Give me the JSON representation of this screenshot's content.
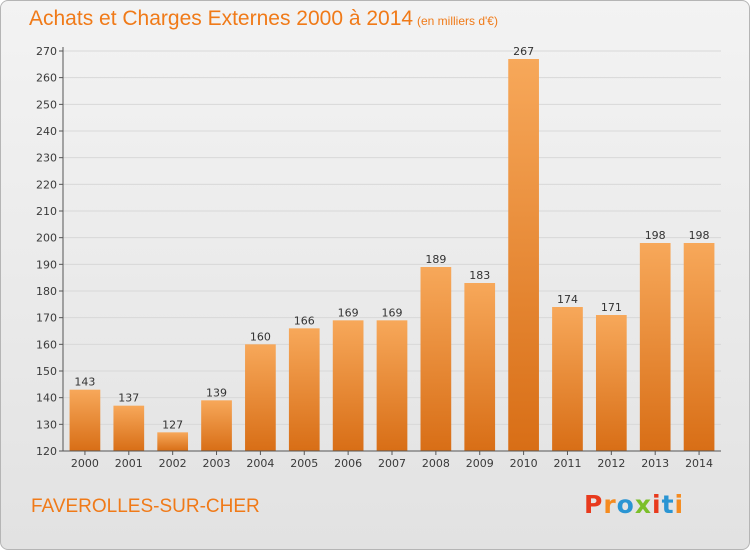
{
  "page": {
    "place_name": "FAVEROLLES-SUR-CHER",
    "logo_text": "Proxiti",
    "logo_colors": [
      "#e83a1d",
      "#f58b1f",
      "#2a95d3",
      "#7bbf2a",
      "#e83a1d",
      "#2a95d3",
      "#f58b1f"
    ]
  },
  "colors": {
    "title": "#f07a18",
    "bar_light": "#f7a85a",
    "bar_dark": "#d86e16",
    "grid": "#d8d8d8",
    "axis": "#555555"
  },
  "chart_data": {
    "type": "bar",
    "title": "Achats et Charges Externes 2000 à 2014",
    "subtitle": "(en milliers d'€)",
    "categories": [
      "2000",
      "2001",
      "2002",
      "2003",
      "2004",
      "2005",
      "2006",
      "2007",
      "2008",
      "2009",
      "2010",
      "2011",
      "2012",
      "2013",
      "2014"
    ],
    "values": [
      143,
      137,
      127,
      139,
      160,
      166,
      169,
      169,
      189,
      183,
      267,
      174,
      171,
      198,
      198
    ],
    "ylim": [
      120,
      270
    ],
    "yticks": [
      120,
      130,
      140,
      150,
      160,
      170,
      180,
      190,
      200,
      210,
      220,
      230,
      240,
      250,
      260,
      270
    ],
    "xlabel": "",
    "ylabel": "",
    "grid": true,
    "legend": "none"
  }
}
